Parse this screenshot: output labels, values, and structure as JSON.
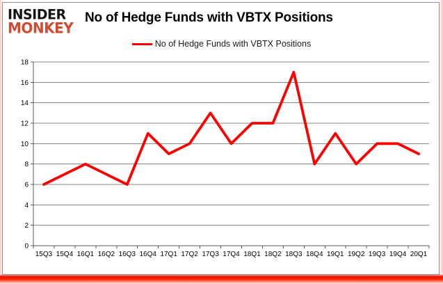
{
  "page": {
    "logo": {
      "line1": "INSIDER",
      "line2": "MONKEY",
      "color": "#d14b32"
    },
    "title": "No of Hedge Funds with VBTX Positions",
    "legend": {
      "label": "No of Hedge Funds with VBTX Positions"
    }
  },
  "chart_data": {
    "type": "line",
    "title": "No of Hedge Funds with VBTX Positions",
    "categories": [
      "15Q3",
      "15Q4",
      "16Q1",
      "16Q2",
      "16Q3",
      "16Q4",
      "17Q1",
      "17Q2",
      "17Q3",
      "17Q4",
      "18Q1",
      "18Q2",
      "18Q3",
      "18Q4",
      "19Q1",
      "19Q2",
      "19Q3",
      "19Q4",
      "20Q1"
    ],
    "series": [
      {
        "name": "No of Hedge Funds with VBTX Positions",
        "color": "#ff0000",
        "values": [
          6,
          7,
          8,
          7,
          6,
          11,
          9,
          10,
          13,
          10,
          12,
          12,
          17,
          8,
          11,
          8,
          10,
          10,
          9
        ]
      }
    ],
    "xlabel": "",
    "ylabel": "",
    "ylim": [
      0,
      18
    ],
    "y_ticks": [
      0,
      2,
      4,
      6,
      8,
      10,
      12,
      14,
      16,
      18
    ],
    "grid": true,
    "legend_position": "top",
    "colors": {
      "grid": "#878787",
      "axis": "#595959",
      "tick_label": "#000000"
    }
  }
}
